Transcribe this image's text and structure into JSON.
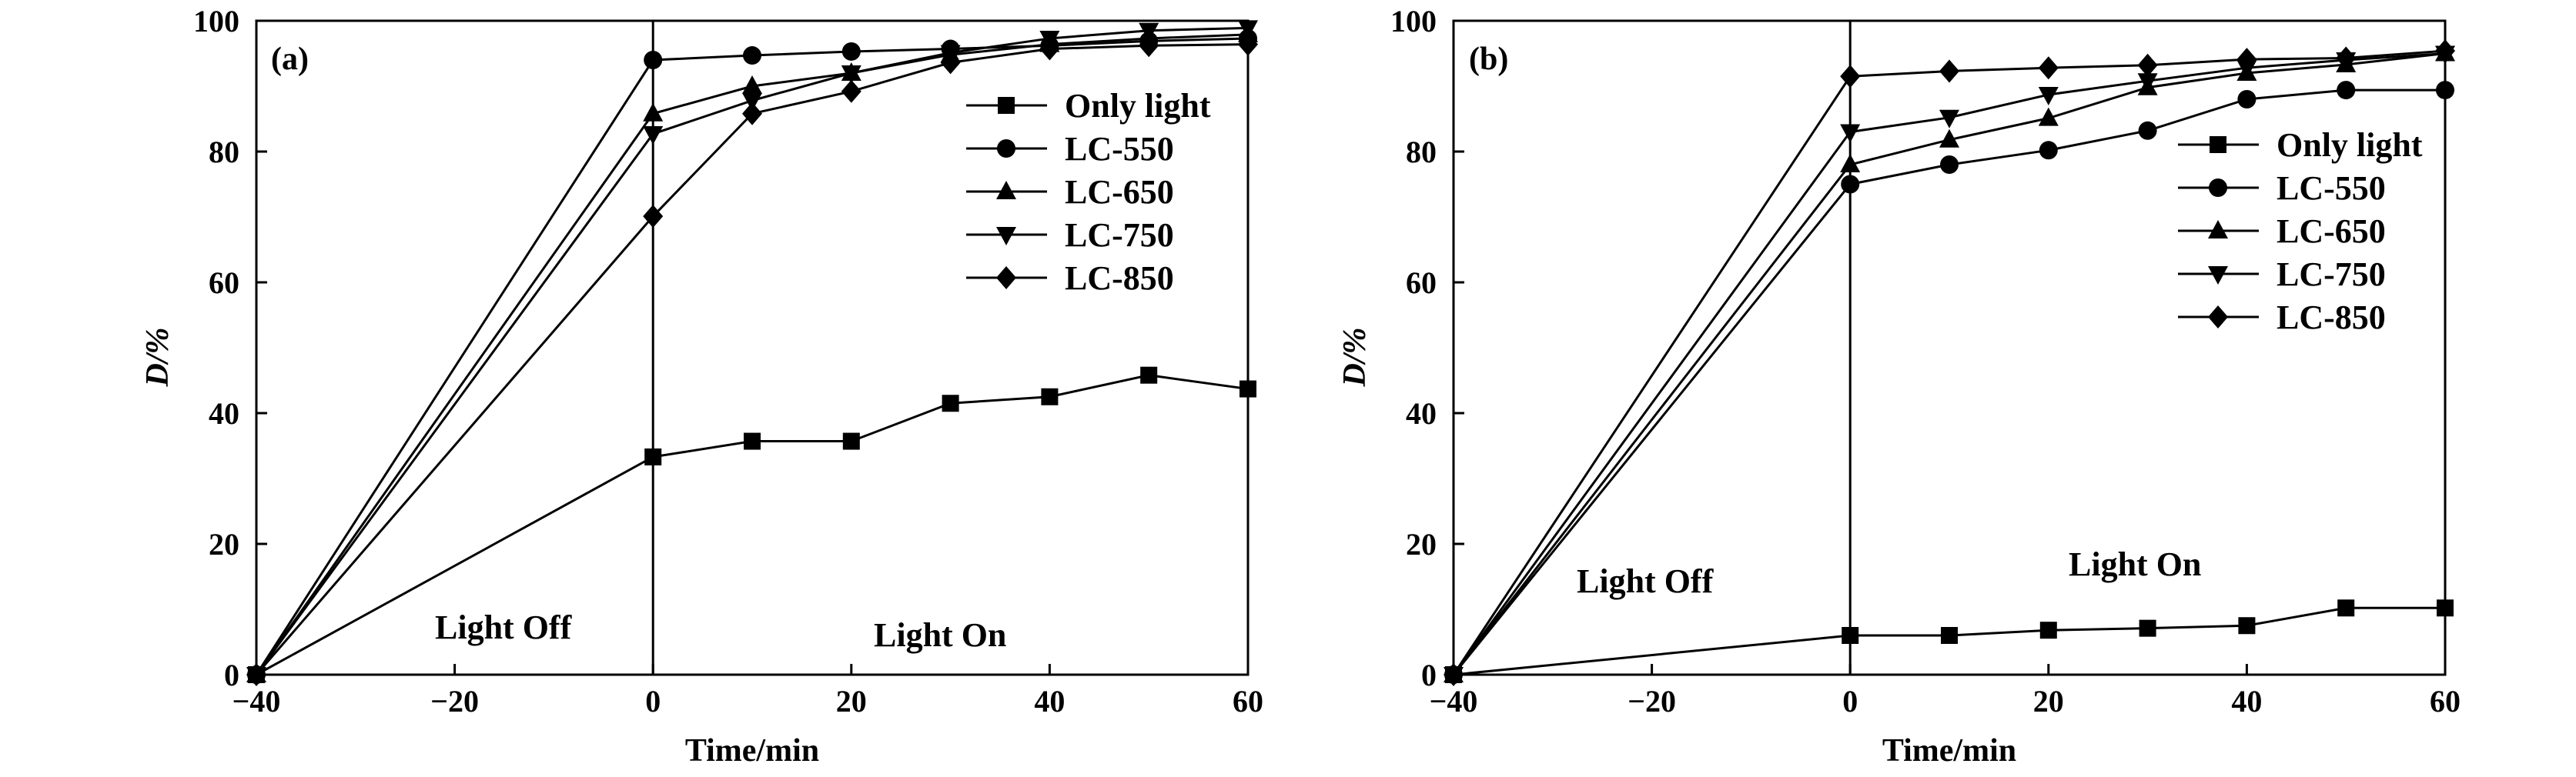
{
  "chart_data": [
    {
      "type": "line",
      "panel_label": "(a)",
      "xlabel": "Time/min",
      "ylabel": "D/%",
      "xlim": [
        -40,
        60
      ],
      "ylim": [
        0,
        100
      ],
      "xticks": [
        "−40",
        "−20",
        "0",
        "20",
        "40",
        "60"
      ],
      "yticks": [
        "0",
        "20",
        "40",
        "60",
        "80",
        "100"
      ],
      "x": [
        -40,
        0,
        10,
        20,
        30,
        40,
        50,
        60
      ],
      "divider_x": 0,
      "annotations": {
        "off": "Light Off",
        "on": "Light On"
      },
      "legend_position": "upper-right",
      "series": [
        {
          "name": "Only light",
          "marker": "square",
          "values": [
            0,
            33.3,
            35.7,
            35.7,
            41.5,
            42.5,
            45.8,
            43.7
          ]
        },
        {
          "name": "LC-550",
          "marker": "circle",
          "values": [
            0,
            94,
            94.7,
            95.3,
            95.7,
            96.2,
            96.9,
            97.3
          ]
        },
        {
          "name": "LC-650",
          "marker": "triangle-up",
          "values": [
            0,
            85.8,
            90,
            92,
            94.8,
            96.4,
            97.3,
            97.9
          ]
        },
        {
          "name": "LC-750",
          "marker": "triangle-down",
          "values": [
            0,
            82.7,
            87.8,
            92,
            95.1,
            97.3,
            98.5,
            98.9
          ]
        },
        {
          "name": "LC-850",
          "marker": "diamond",
          "values": [
            0,
            70.1,
            85.8,
            89.2,
            93.6,
            95.7,
            96.2,
            96.4
          ]
        }
      ]
    },
    {
      "type": "line",
      "panel_label": "(b)",
      "xlabel": "Time/min",
      "ylabel": "D/%",
      "xlim": [
        -40,
        60
      ],
      "ylim": [
        0,
        100
      ],
      "xticks": [
        "−40",
        "−20",
        "0",
        "20",
        "40",
        "60"
      ],
      "yticks": [
        "0",
        "20",
        "40",
        "60",
        "80",
        "100"
      ],
      "x": [
        -40,
        0,
        10,
        20,
        30,
        40,
        50,
        60
      ],
      "divider_x": 0,
      "annotations": {
        "off": "Light Off",
        "on": "Light On"
      },
      "legend_position": "right",
      "series": [
        {
          "name": "Only light",
          "marker": "square",
          "values": [
            0,
            6,
            6,
            6.8,
            7.1,
            7.5,
            10.2,
            10.2
          ]
        },
        {
          "name": "LC-550",
          "marker": "circle",
          "values": [
            0,
            75,
            78,
            80.2,
            83.2,
            88,
            89.4,
            89.4
          ]
        },
        {
          "name": "LC-650",
          "marker": "triangle-up",
          "values": [
            0,
            78,
            81.8,
            85.1,
            89.8,
            92,
            93.3,
            95
          ]
        },
        {
          "name": "LC-750",
          "marker": "triangle-down",
          "values": [
            0,
            83,
            85.2,
            88.7,
            90.8,
            92.8,
            94,
            95
          ]
        },
        {
          "name": "LC-850",
          "marker": "diamond",
          "values": [
            0,
            91.5,
            92.3,
            92.8,
            93.2,
            94.1,
            94.3,
            95.4
          ]
        }
      ]
    }
  ]
}
